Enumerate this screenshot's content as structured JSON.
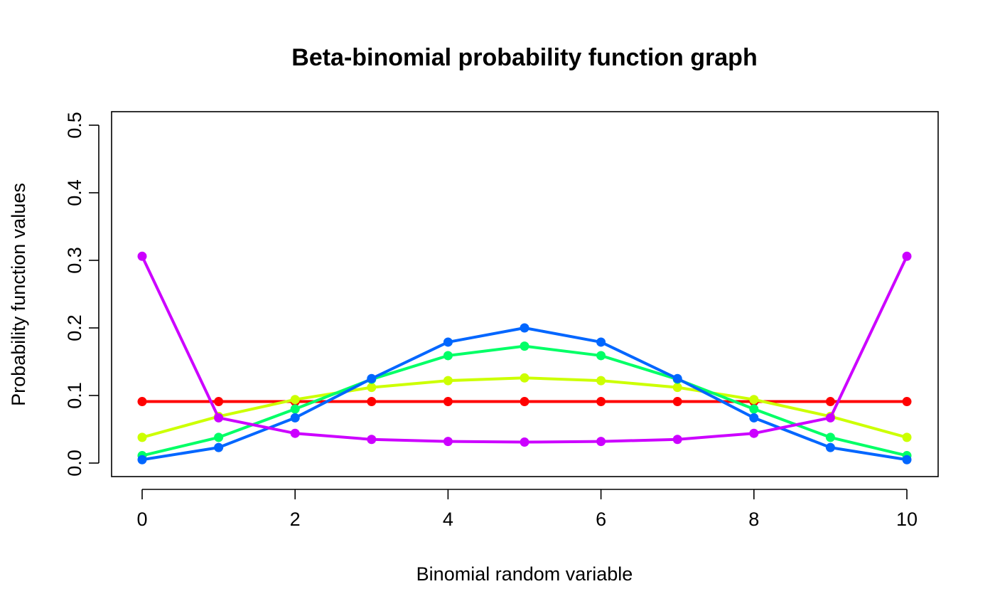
{
  "chart_data": {
    "type": "line",
    "title": "Beta-binomial probability function graph",
    "xlabel": "Binomial random variable",
    "ylabel": "Probability function values",
    "x": [
      0,
      1,
      2,
      3,
      4,
      5,
      6,
      7,
      8,
      9,
      10
    ],
    "xlim": [
      -0.2,
      10.2
    ],
    "ylim": [
      -0.02,
      0.52
    ],
    "x_ticks": [
      0,
      2,
      4,
      6,
      8,
      10
    ],
    "y_ticks": [
      0.0,
      0.1,
      0.2,
      0.3,
      0.4,
      0.5
    ],
    "x_tick_labels": [
      "0",
      "2",
      "4",
      "6",
      "8",
      "10"
    ],
    "y_tick_labels": [
      "0.0",
      "0.1",
      "0.2",
      "0.3",
      "0.4",
      "0.5"
    ],
    "grid": false,
    "legend": "none",
    "series": [
      {
        "color": "#ff0000",
        "values": [
          0.091,
          0.091,
          0.091,
          0.091,
          0.091,
          0.091,
          0.091,
          0.091,
          0.091,
          0.091,
          0.091
        ]
      },
      {
        "color": "#ccff00",
        "values": [
          0.038,
          0.069,
          0.094,
          0.112,
          0.122,
          0.126,
          0.122,
          0.112,
          0.094,
          0.069,
          0.038
        ]
      },
      {
        "color": "#00ff66",
        "values": [
          0.011,
          0.038,
          0.08,
          0.124,
          0.159,
          0.173,
          0.159,
          0.124,
          0.08,
          0.038,
          0.011
        ]
      },
      {
        "color": "#0066ff",
        "values": [
          0.005,
          0.023,
          0.067,
          0.125,
          0.179,
          0.2,
          0.179,
          0.125,
          0.067,
          0.023,
          0.005
        ]
      },
      {
        "color": "#cc00ff",
        "values": [
          0.306,
          0.067,
          0.044,
          0.035,
          0.032,
          0.031,
          0.032,
          0.035,
          0.044,
          0.067,
          0.306
        ]
      }
    ]
  }
}
